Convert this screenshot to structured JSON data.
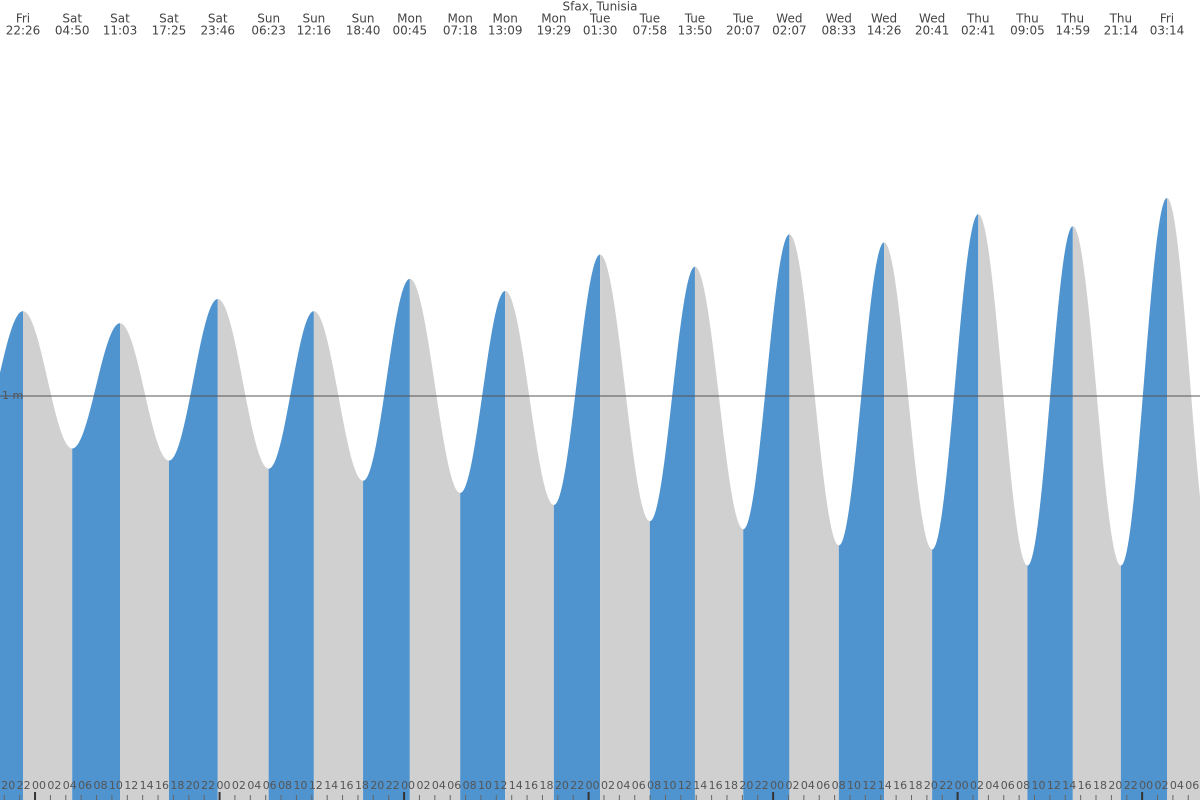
{
  "chart_data": {
    "type": "area",
    "title": "Sfax, Tunisia",
    "extremes": [
      {
        "day": "Fri",
        "time": "22:26",
        "height": 1.21
      },
      {
        "day": "Sat",
        "time": "04:50",
        "height": 0.87
      },
      {
        "day": "Sat",
        "time": "11:03",
        "height": 1.18
      },
      {
        "day": "Sat",
        "time": "17:25",
        "height": 0.84
      },
      {
        "day": "Sat",
        "time": "23:46",
        "height": 1.24
      },
      {
        "day": "Sun",
        "time": "06:23",
        "height": 0.82
      },
      {
        "day": "Sun",
        "time": "12:16",
        "height": 1.21
      },
      {
        "day": "Sun",
        "time": "18:40",
        "height": 0.79
      },
      {
        "day": "Mon",
        "time": "00:45",
        "height": 1.29
      },
      {
        "day": "Mon",
        "time": "07:18",
        "height": 0.76
      },
      {
        "day": "Mon",
        "time": "13:09",
        "height": 1.26
      },
      {
        "day": "Mon",
        "time": "19:29",
        "height": 0.73
      },
      {
        "day": "Tue",
        "time": "01:30",
        "height": 1.35
      },
      {
        "day": "Tue",
        "time": "07:58",
        "height": 0.69
      },
      {
        "day": "Tue",
        "time": "13:50",
        "height": 1.32
      },
      {
        "day": "Tue",
        "time": "20:07",
        "height": 0.67
      },
      {
        "day": "Wed",
        "time": "02:07",
        "height": 1.4
      },
      {
        "day": "Wed",
        "time": "08:33",
        "height": 0.63
      },
      {
        "day": "Wed",
        "time": "14:26",
        "height": 1.38
      },
      {
        "day": "Wed",
        "time": "20:41",
        "height": 0.62
      },
      {
        "day": "Thu",
        "time": "02:41",
        "height": 1.45
      },
      {
        "day": "Thu",
        "time": "09:05",
        "height": 0.58
      },
      {
        "day": "Thu",
        "time": "14:59",
        "height": 1.42
      },
      {
        "day": "Thu",
        "time": "21:14",
        "height": 0.58
      },
      {
        "day": "Fri",
        "time": "03:14",
        "height": 1.49
      }
    ],
    "ylim": [
      0,
      1.98
    ],
    "reference_line": {
      "value": 1,
      "label": "1 m"
    },
    "hour_labels": [
      "20",
      "22",
      "00",
      "02",
      "04",
      "06",
      "08",
      "10",
      "12",
      "14",
      "16",
      "18",
      "20",
      "22",
      "00",
      "02",
      "04",
      "06",
      "08",
      "10",
      "12",
      "14",
      "16",
      "18",
      "20",
      "22",
      "00",
      "02",
      "04",
      "06",
      "08",
      "10",
      "12",
      "14",
      "16",
      "18",
      "20",
      "22",
      "00",
      "02",
      "04",
      "06",
      "08",
      "10",
      "12",
      "14",
      "16",
      "18",
      "20",
      "22",
      "00",
      "02",
      "04",
      "06",
      "08",
      "10",
      "12",
      "14",
      "16",
      "18",
      "20",
      "22",
      "00",
      "02",
      "04",
      "06",
      "08",
      "10",
      "12",
      "14",
      "16",
      "18",
      "20",
      "22",
      "00",
      "02",
      "04",
      "06"
    ],
    "colors": {
      "rising": "#4f93cf",
      "falling": "#d0d0d0"
    }
  }
}
